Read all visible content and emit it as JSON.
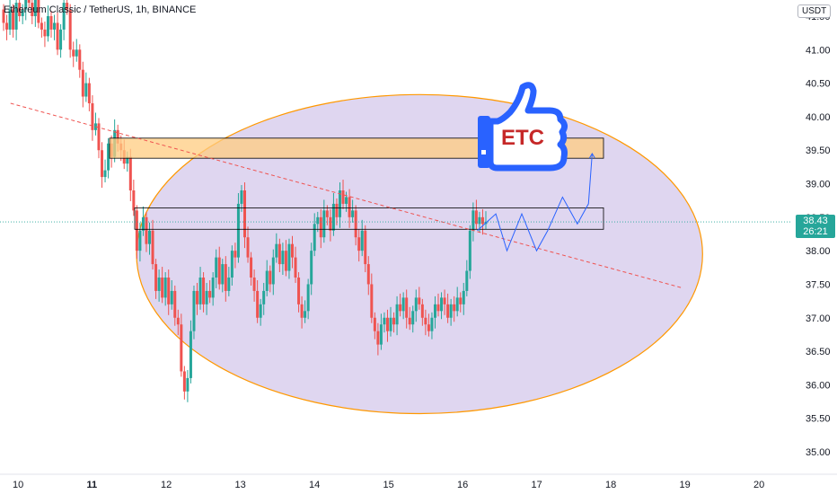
{
  "header": {
    "title": "Ethereum Classic / TetherUS, 1h, BINANCE",
    "unit": "USDT"
  },
  "last_price": {
    "value": "38.43",
    "countdown": "26:21",
    "color": "#26a69a"
  },
  "badge": {
    "text": "ETC"
  },
  "colors": {
    "up": "#26a69a",
    "down": "#ef5350",
    "ellipse_fill": "#b39ddb",
    "ellipse_stroke": "#ff9800",
    "zone_fill": "#ffcc80",
    "trendline": "#ef5350",
    "projection": "#2962ff",
    "thumb": "#2962ff"
  },
  "chart_data": {
    "type": "candlestick",
    "y_ticks": [
      "35.00",
      "35.50",
      "36.00",
      "36.50",
      "37.00",
      "37.50",
      "38.00",
      "38.50",
      "39.00",
      "39.50",
      "40.00",
      "40.50",
      "41.00",
      "41.50"
    ],
    "x_ticks": [
      "10",
      "11",
      "12",
      "13",
      "14",
      "15",
      "16",
      "17",
      "18",
      "19",
      "20"
    ],
    "x_tick_bold": "11",
    "ylim": [
      34.8,
      41.8
    ],
    "candles": [
      [
        41.6,
        41.4
      ],
      [
        41.4,
        41.3
      ],
      [
        41.3,
        41.6
      ],
      [
        41.6,
        41.3
      ],
      [
        41.3,
        41.7
      ],
      [
        41.7,
        41.5
      ],
      [
        41.5,
        41.6
      ],
      [
        41.6,
        41.8
      ],
      [
        41.8,
        41.7
      ],
      [
        41.7,
        41.5
      ],
      [
        41.5,
        41.8
      ],
      [
        41.8,
        41.4
      ],
      [
        41.4,
        41.3
      ],
      [
        41.3,
        41.2
      ],
      [
        41.2,
        41.5
      ],
      [
        41.5,
        41.3
      ],
      [
        41.3,
        41.4
      ],
      [
        41.4,
        41.0
      ],
      [
        41.0,
        41.3
      ],
      [
        41.3,
        41.7
      ],
      [
        41.7,
        41.6
      ],
      [
        41.6,
        41.0
      ],
      [
        41.0,
        40.9
      ],
      [
        40.9,
        41.0
      ],
      [
        41.0,
        40.7
      ],
      [
        40.7,
        40.3
      ],
      [
        40.3,
        40.5
      ],
      [
        40.5,
        40.2
      ],
      [
        40.2,
        39.8
      ],
      [
        39.8,
        39.9
      ],
      [
        39.9,
        39.5
      ],
      [
        39.5,
        39.1
      ],
      [
        39.1,
        39.2
      ],
      [
        39.2,
        39.6
      ],
      [
        39.6,
        39.4
      ],
      [
        39.4,
        39.8
      ],
      [
        39.8,
        39.6
      ],
      [
        39.6,
        39.5
      ],
      [
        39.5,
        39.3
      ],
      [
        39.3,
        39.4
      ],
      [
        39.4,
        38.9
      ],
      [
        38.9,
        38.6
      ],
      [
        38.6,
        38.0
      ],
      [
        38.0,
        38.3
      ],
      [
        38.3,
        38.5
      ],
      [
        38.5,
        38.1
      ],
      [
        38.1,
        38.3
      ],
      [
        38.3,
        37.8
      ],
      [
        37.8,
        37.4
      ],
      [
        37.4,
        37.6
      ],
      [
        37.6,
        37.3
      ],
      [
        37.3,
        37.6
      ],
      [
        37.6,
        37.2
      ],
      [
        37.2,
        37.4
      ],
      [
        37.4,
        37.0
      ],
      [
        37.0,
        36.9
      ],
      [
        36.9,
        36.2
      ],
      [
        36.2,
        35.9
      ],
      [
        35.9,
        36.1
      ],
      [
        36.1,
        36.8
      ],
      [
        36.8,
        37.4
      ],
      [
        37.4,
        37.2
      ],
      [
        37.2,
        37.6
      ],
      [
        37.6,
        37.2
      ],
      [
        37.2,
        37.4
      ],
      [
        37.4,
        37.3
      ],
      [
        37.3,
        37.6
      ],
      [
        37.6,
        37.9
      ],
      [
        37.9,
        37.5
      ],
      [
        37.5,
        37.8
      ],
      [
        37.8,
        37.4
      ],
      [
        37.4,
        37.6
      ],
      [
        37.6,
        38.0
      ],
      [
        38.0,
        37.9
      ],
      [
        37.9,
        38.7
      ],
      [
        38.7,
        38.9
      ],
      [
        38.9,
        38.2
      ],
      [
        38.2,
        37.9
      ],
      [
        37.9,
        37.6
      ],
      [
        37.6,
        37.4
      ],
      [
        37.4,
        37.0
      ],
      [
        37.0,
        37.2
      ],
      [
        37.2,
        37.4
      ],
      [
        37.4,
        37.7
      ],
      [
        37.7,
        37.5
      ],
      [
        37.5,
        37.9
      ],
      [
        37.9,
        38.1
      ],
      [
        38.1,
        37.8
      ],
      [
        37.8,
        38.0
      ],
      [
        38.0,
        37.7
      ],
      [
        37.7,
        38.1
      ],
      [
        38.1,
        37.9
      ],
      [
        37.9,
        37.6
      ],
      [
        37.6,
        37.2
      ],
      [
        37.2,
        37.0
      ],
      [
        37.0,
        37.1
      ],
      [
        37.1,
        37.5
      ],
      [
        37.5,
        38.0
      ],
      [
        38.0,
        38.4
      ],
      [
        38.4,
        38.5
      ],
      [
        38.5,
        38.2
      ],
      [
        38.2,
        38.6
      ],
      [
        38.6,
        38.5
      ],
      [
        38.5,
        38.3
      ],
      [
        38.3,
        38.7
      ],
      [
        38.7,
        38.5
      ],
      [
        38.5,
        38.9
      ],
      [
        38.9,
        38.7
      ],
      [
        38.7,
        38.8
      ],
      [
        38.8,
        38.5
      ],
      [
        38.5,
        38.6
      ],
      [
        38.6,
        38.2
      ],
      [
        38.2,
        38.0
      ],
      [
        38.0,
        38.3
      ],
      [
        38.3,
        37.8
      ],
      [
        37.8,
        37.5
      ],
      [
        37.5,
        37.0
      ],
      [
        37.0,
        36.8
      ],
      [
        36.8,
        36.6
      ],
      [
        36.6,
        36.9
      ],
      [
        36.9,
        37.0
      ],
      [
        37.0,
        36.8
      ],
      [
        36.8,
        37.0
      ],
      [
        37.0,
        36.9
      ],
      [
        36.9,
        37.2
      ],
      [
        37.2,
        37.1
      ],
      [
        37.1,
        37.3
      ],
      [
        37.3,
        37.0
      ],
      [
        37.0,
        36.9
      ],
      [
        36.9,
        37.1
      ],
      [
        37.1,
        37.3
      ],
      [
        37.3,
        37.2
      ],
      [
        37.2,
        37.0
      ],
      [
        37.0,
        36.9
      ],
      [
        36.9,
        36.8
      ],
      [
        36.8,
        37.0
      ],
      [
        37.0,
        37.2
      ],
      [
        37.2,
        37.1
      ],
      [
        37.1,
        37.3
      ],
      [
        37.3,
        37.2
      ],
      [
        37.2,
        37.0
      ],
      [
        37.0,
        37.2
      ],
      [
        37.2,
        37.1
      ],
      [
        37.1,
        37.3
      ],
      [
        37.3,
        37.2
      ],
      [
        37.2,
        37.4
      ],
      [
        37.4,
        37.7
      ],
      [
        37.7,
        38.3
      ],
      [
        38.3,
        38.6
      ],
      [
        38.6,
        38.4
      ],
      [
        38.4,
        38.5
      ],
      [
        38.5,
        38.4
      ],
      [
        38.4,
        38.43
      ]
    ],
    "annotations": {
      "zone_upper": [
        39.38,
        39.68
      ],
      "zone_lower": [
        38.32,
        38.64
      ],
      "trendline": [
        [
          9.9,
          40.2
        ],
        [
          18.95,
          37.45
        ]
      ],
      "projection": [
        [
          16.2,
          38.3
        ],
        [
          16.45,
          38.55
        ],
        [
          16.6,
          38.0
        ],
        [
          16.8,
          38.55
        ],
        [
          17.0,
          38.0
        ],
        [
          17.15,
          38.3
        ],
        [
          17.35,
          38.8
        ],
        [
          17.55,
          38.4
        ],
        [
          17.7,
          38.7
        ],
        [
          17.75,
          39.45
        ]
      ],
      "ellipse_center": [
        15.42,
        37.95
      ],
      "ellipse_radii": [
        3.82,
        2.38
      ]
    }
  }
}
